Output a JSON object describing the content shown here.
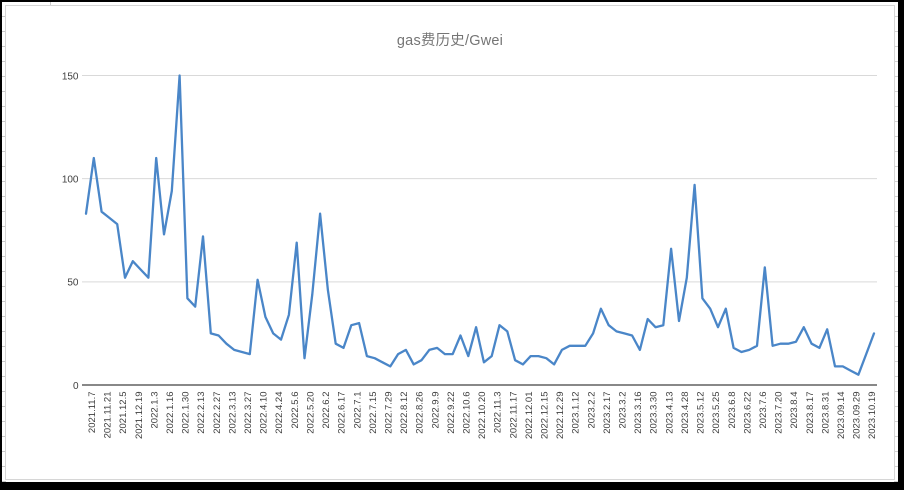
{
  "window": {
    "background_color": "#000000",
    "panel_color": "#ffffff"
  },
  "chart_data": {
    "type": "line",
    "title": "gas费历史/Gwei",
    "xlabel": "",
    "ylabel": "",
    "ylim": [
      0,
      150
    ],
    "y_ticks": [
      0,
      50,
      100,
      150
    ],
    "grid": "horizontal-only",
    "legend": "none",
    "label_every": 2,
    "colors": {
      "series": "#4a86c8",
      "grid": "#d9d9d9",
      "axis": "#404040",
      "tick_text": "#404040",
      "title_text": "#757575"
    },
    "x_labels": [
      "2021.11.7",
      "2021.11.21",
      "2021.12.5",
      "2021.12.19",
      "2022.1.3",
      "2022.1.16",
      "2022.1.30",
      "2022.2.13",
      "2022.2.27",
      "2022.3.13",
      "2022.3.27",
      "2022.4.10",
      "2022.4.24",
      "2022.5.6",
      "2022.5.20",
      "2022.6.2",
      "2022.6.17",
      "2022.7.1",
      "2022.7.15",
      "2022.7.29",
      "2022.8.12",
      "2022.8.26",
      "2022.9.9",
      "2022.9.22",
      "2022.10.6",
      "2022.10.20",
      "2022.11.3",
      "2022.11.17",
      "2022.12.01",
      "2022.12.15",
      "2022.12.29",
      "2023.1.12",
      "2023.2.2",
      "2023.2.17",
      "2023.3.2",
      "2023.3.16",
      "2023.3.30",
      "2023.4.13",
      "2023.4.28",
      "2023.5.12",
      "2023.5.25",
      "2023.6.8",
      "2023.6.22",
      "2023.7.6",
      "2023.7.20",
      "2023.8.4",
      "2023.8.17",
      "2023.8.31",
      "2023.09.14",
      "2023.09.29",
      "2023.10.19"
    ],
    "values": [
      83,
      110,
      84,
      81,
      78,
      52,
      60,
      56,
      52,
      110,
      73,
      94,
      150,
      42,
      38,
      72,
      25,
      24,
      20,
      17,
      16,
      15,
      51,
      33,
      25,
      22,
      34,
      69,
      13,
      44,
      83,
      46,
      20,
      18,
      29,
      30,
      14,
      13,
      11,
      9,
      15,
      17,
      10,
      12,
      17,
      18,
      15,
      15,
      24,
      14,
      28,
      11,
      14,
      29,
      26,
      12,
      10,
      14,
      14,
      13,
      10,
      17,
      19,
      19,
      19,
      25,
      37,
      29,
      26,
      25,
      24,
      17,
      32,
      28,
      29,
      66,
      31,
      52,
      97,
      42,
      37,
      28,
      37,
      18,
      16,
      17,
      19,
      57,
      19,
      20,
      20,
      21,
      28,
      20,
      18,
      27,
      9,
      9,
      7,
      5,
      15,
      25
    ]
  }
}
